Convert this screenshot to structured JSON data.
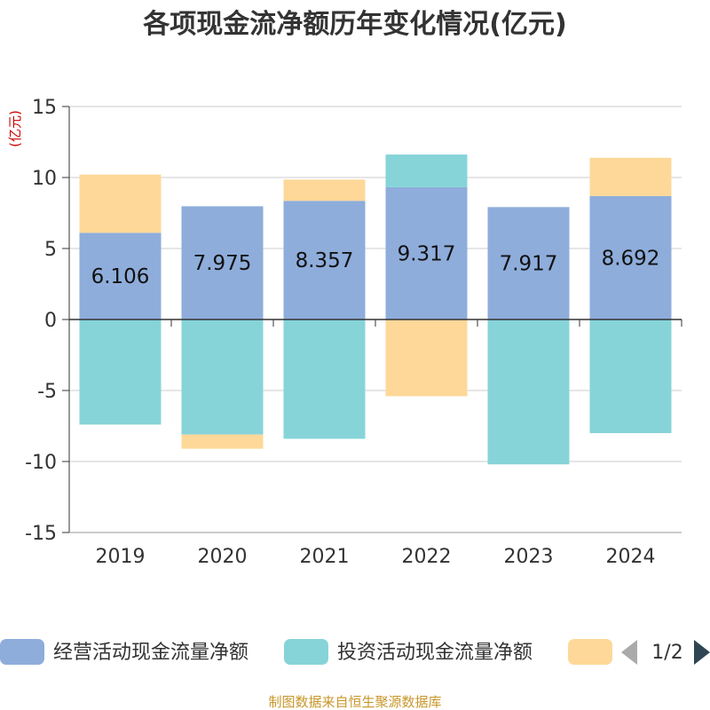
{
  "chart_data": {
    "type": "bar",
    "stacked": true,
    "title": "各项现金流净额历年变化情况(亿元)",
    "ylabel": "(亿元)",
    "ylim": [
      -15,
      15
    ],
    "yticks": [
      15,
      10,
      5,
      0,
      -5,
      -10,
      -15
    ],
    "categories": [
      "2019",
      "2020",
      "2021",
      "2022",
      "2023",
      "2024"
    ],
    "series": [
      {
        "name": "经营活动现金流量净额",
        "color": "#8eaddb",
        "values": [
          6.106,
          7.975,
          8.357,
          9.317,
          7.917,
          8.692
        ],
        "labels": [
          "6.106",
          "7.975",
          "8.357",
          "9.317",
          "7.917",
          "8.692"
        ]
      },
      {
        "name": "投资活动现金流量净额",
        "color": "#86d4d8",
        "values": [
          -7.4,
          -8.1,
          -8.4,
          2.3,
          -10.2,
          -8.0
        ]
      },
      {
        "name": "",
        "color": "#fdd898",
        "values": [
          4.1,
          -1.0,
          1.5,
          -5.4,
          0,
          2.7
        ]
      }
    ],
    "legend_position": "bottom",
    "legend_page": "1/2",
    "source": "制图数据来自恒生聚源数据库"
  }
}
